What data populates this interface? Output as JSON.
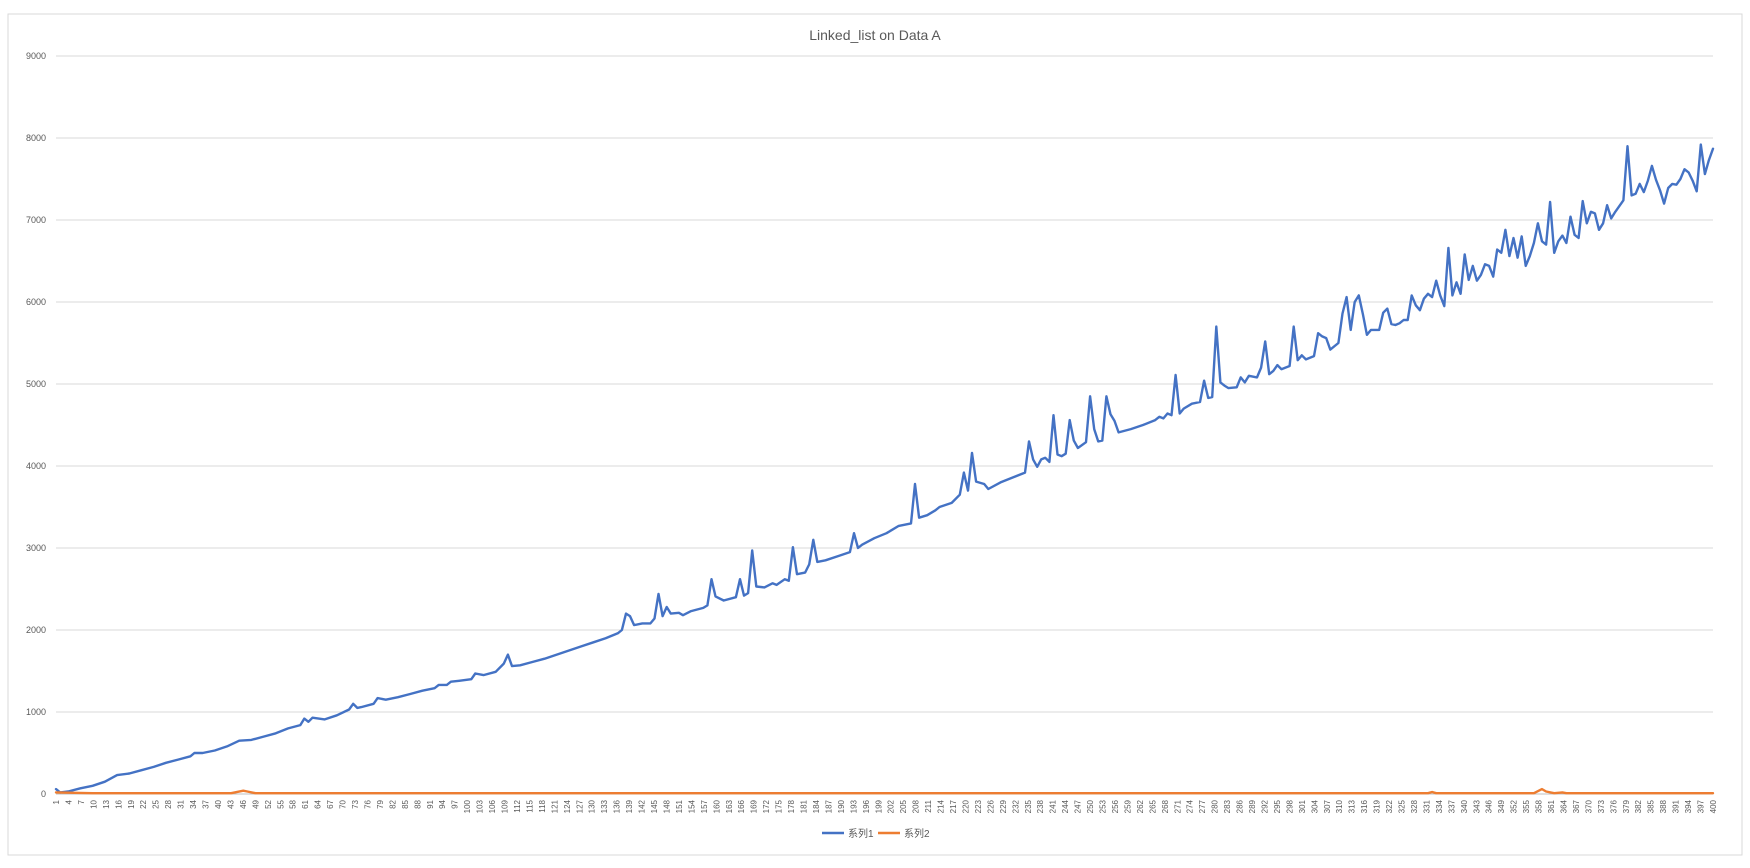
{
  "chart_data": {
    "type": "line",
    "title": "Linked_list on Data A",
    "xlabel": "",
    "ylabel": "",
    "ylim": [
      0,
      9000
    ],
    "yticks": [
      0,
      1000,
      2000,
      3000,
      4000,
      5000,
      6000,
      7000,
      8000,
      9000
    ],
    "xrange": [
      1,
      400
    ],
    "x_tick_step": 3,
    "grid": "horizontal",
    "legend_position": "bottom",
    "colors": {
      "series1": "#4472c4",
      "series2": "#ed7d31",
      "grid": "#d9d9d9",
      "axis": "#bfbfbf",
      "text": "#595959"
    },
    "series": [
      {
        "name": "系列1",
        "points": [
          [
            1,
            60
          ],
          [
            2,
            20
          ],
          [
            4,
            30
          ],
          [
            7,
            70
          ],
          [
            10,
            100
          ],
          [
            13,
            150
          ],
          [
            16,
            230
          ],
          [
            19,
            250
          ],
          [
            22,
            290
          ],
          [
            25,
            330
          ],
          [
            28,
            380
          ],
          [
            31,
            420
          ],
          [
            34,
            460
          ],
          [
            35,
            500
          ],
          [
            37,
            500
          ],
          [
            40,
            530
          ],
          [
            43,
            580
          ],
          [
            46,
            650
          ],
          [
            49,
            660
          ],
          [
            52,
            700
          ],
          [
            55,
            740
          ],
          [
            58,
            800
          ],
          [
            61,
            840
          ],
          [
            62,
            920
          ],
          [
            63,
            880
          ],
          [
            64,
            930
          ],
          [
            67,
            910
          ],
          [
            70,
            960
          ],
          [
            73,
            1030
          ],
          [
            74,
            1100
          ],
          [
            75,
            1050
          ],
          [
            76,
            1060
          ],
          [
            79,
            1100
          ],
          [
            80,
            1170
          ],
          [
            82,
            1150
          ],
          [
            85,
            1180
          ],
          [
            88,
            1220
          ],
          [
            91,
            1260
          ],
          [
            94,
            1290
          ],
          [
            95,
            1330
          ],
          [
            97,
            1330
          ],
          [
            98,
            1370
          ],
          [
            100,
            1380
          ],
          [
            103,
            1400
          ],
          [
            104,
            1470
          ],
          [
            106,
            1450
          ],
          [
            109,
            1490
          ],
          [
            111,
            1590
          ],
          [
            112,
            1700
          ],
          [
            113,
            1560
          ],
          [
            115,
            1570
          ],
          [
            118,
            1610
          ],
          [
            121,
            1650
          ],
          [
            124,
            1700
          ],
          [
            127,
            1750
          ],
          [
            130,
            1800
          ],
          [
            133,
            1850
          ],
          [
            136,
            1900
          ],
          [
            139,
            1960
          ],
          [
            140,
            2000
          ],
          [
            141,
            2200
          ],
          [
            142,
            2170
          ],
          [
            143,
            2060
          ],
          [
            145,
            2080
          ],
          [
            147,
            2080
          ],
          [
            148,
            2140
          ],
          [
            149,
            2440
          ],
          [
            150,
            2170
          ],
          [
            151,
            2280
          ],
          [
            152,
            2200
          ],
          [
            154,
            2210
          ],
          [
            155,
            2180
          ],
          [
            157,
            2230
          ],
          [
            160,
            2270
          ],
          [
            161,
            2300
          ],
          [
            162,
            2620
          ],
          [
            163,
            2410
          ],
          [
            165,
            2360
          ],
          [
            168,
            2400
          ],
          [
            169,
            2620
          ],
          [
            170,
            2420
          ],
          [
            171,
            2450
          ],
          [
            172,
            2970
          ],
          [
            173,
            2530
          ],
          [
            175,
            2520
          ],
          [
            177,
            2570
          ],
          [
            178,
            2550
          ],
          [
            180,
            2620
          ],
          [
            181,
            2600
          ],
          [
            182,
            3010
          ],
          [
            183,
            2680
          ],
          [
            185,
            2700
          ],
          [
            186,
            2800
          ],
          [
            187,
            3100
          ],
          [
            188,
            2830
          ],
          [
            190,
            2850
          ],
          [
            193,
            2900
          ],
          [
            196,
            2950
          ],
          [
            197,
            3180
          ],
          [
            198,
            3000
          ],
          [
            199,
            3040
          ],
          [
            202,
            3120
          ],
          [
            205,
            3180
          ],
          [
            208,
            3270
          ],
          [
            211,
            3300
          ],
          [
            212,
            3780
          ],
          [
            213,
            3370
          ],
          [
            215,
            3400
          ],
          [
            217,
            3460
          ],
          [
            218,
            3500
          ],
          [
            221,
            3550
          ],
          [
            223,
            3650
          ],
          [
            224,
            3920
          ],
          [
            225,
            3700
          ],
          [
            226,
            4160
          ],
          [
            227,
            3810
          ],
          [
            229,
            3780
          ],
          [
            230,
            3720
          ],
          [
            233,
            3800
          ],
          [
            236,
            3860
          ],
          [
            239,
            3920
          ],
          [
            240,
            4300
          ],
          [
            241,
            4080
          ],
          [
            242,
            3990
          ],
          [
            243,
            4080
          ],
          [
            244,
            4100
          ],
          [
            245,
            4050
          ],
          [
            246,
            4620
          ],
          [
            247,
            4140
          ],
          [
            248,
            4120
          ],
          [
            249,
            4150
          ],
          [
            250,
            4560
          ],
          [
            251,
            4310
          ],
          [
            252,
            4220
          ],
          [
            254,
            4290
          ],
          [
            255,
            4850
          ],
          [
            256,
            4450
          ],
          [
            257,
            4300
          ],
          [
            258,
            4310
          ],
          [
            259,
            4850
          ],
          [
            260,
            4630
          ],
          [
            261,
            4550
          ],
          [
            262,
            4410
          ],
          [
            265,
            4450
          ],
          [
            268,
            4500
          ],
          [
            271,
            4560
          ],
          [
            272,
            4600
          ],
          [
            273,
            4580
          ],
          [
            274,
            4640
          ],
          [
            275,
            4620
          ],
          [
            276,
            5110
          ],
          [
            277,
            4640
          ],
          [
            278,
            4700
          ],
          [
            280,
            4760
          ],
          [
            282,
            4780
          ],
          [
            283,
            5040
          ],
          [
            284,
            4830
          ],
          [
            285,
            4840
          ],
          [
            286,
            5700
          ],
          [
            287,
            5020
          ],
          [
            288,
            4980
          ],
          [
            289,
            4950
          ],
          [
            291,
            4960
          ],
          [
            292,
            5080
          ],
          [
            293,
            5020
          ],
          [
            294,
            5100
          ],
          [
            296,
            5080
          ],
          [
            297,
            5200
          ],
          [
            298,
            5520
          ],
          [
            299,
            5120
          ],
          [
            300,
            5160
          ],
          [
            301,
            5230
          ],
          [
            302,
            5180
          ],
          [
            304,
            5220
          ],
          [
            305,
            5700
          ],
          [
            306,
            5290
          ],
          [
            307,
            5350
          ],
          [
            308,
            5300
          ],
          [
            310,
            5340
          ],
          [
            311,
            5620
          ],
          [
            312,
            5580
          ],
          [
            313,
            5560
          ],
          [
            314,
            5420
          ],
          [
            316,
            5500
          ],
          [
            317,
            5860
          ],
          [
            318,
            6060
          ],
          [
            319,
            5660
          ],
          [
            320,
            6000
          ],
          [
            321,
            6080
          ],
          [
            322,
            5850
          ],
          [
            323,
            5600
          ],
          [
            324,
            5660
          ],
          [
            326,
            5660
          ],
          [
            327,
            5870
          ],
          [
            328,
            5920
          ],
          [
            329,
            5730
          ],
          [
            330,
            5720
          ],
          [
            331,
            5740
          ],
          [
            332,
            5780
          ],
          [
            333,
            5780
          ],
          [
            334,
            6080
          ],
          [
            335,
            5960
          ],
          [
            336,
            5900
          ],
          [
            337,
            6040
          ],
          [
            338,
            6100
          ],
          [
            339,
            6060
          ],
          [
            340,
            6260
          ],
          [
            341,
            6080
          ],
          [
            342,
            5950
          ],
          [
            343,
            6660
          ],
          [
            344,
            6080
          ],
          [
            345,
            6240
          ],
          [
            346,
            6100
          ],
          [
            347,
            6580
          ],
          [
            348,
            6270
          ],
          [
            349,
            6440
          ],
          [
            350,
            6260
          ],
          [
            351,
            6330
          ],
          [
            352,
            6460
          ],
          [
            353,
            6440
          ],
          [
            354,
            6310
          ],
          [
            355,
            6640
          ],
          [
            356,
            6600
          ],
          [
            357,
            6880
          ],
          [
            358,
            6560
          ],
          [
            359,
            6780
          ],
          [
            360,
            6540
          ],
          [
            361,
            6800
          ],
          [
            362,
            6440
          ],
          [
            363,
            6560
          ],
          [
            364,
            6720
          ],
          [
            365,
            6960
          ],
          [
            366,
            6740
          ],
          [
            367,
            6700
          ],
          [
            368,
            7220
          ],
          [
            369,
            6600
          ],
          [
            370,
            6740
          ],
          [
            371,
            6810
          ],
          [
            372,
            6720
          ],
          [
            373,
            7040
          ],
          [
            374,
            6820
          ],
          [
            375,
            6780
          ],
          [
            376,
            7230
          ],
          [
            377,
            6960
          ],
          [
            378,
            7100
          ],
          [
            379,
            7080
          ],
          [
            380,
            6880
          ],
          [
            381,
            6960
          ],
          [
            382,
            7180
          ],
          [
            383,
            7020
          ],
          [
            384,
            7100
          ],
          [
            386,
            7240
          ],
          [
            387,
            7900
          ],
          [
            388,
            7300
          ],
          [
            389,
            7320
          ],
          [
            390,
            7440
          ],
          [
            391,
            7340
          ],
          [
            392,
            7480
          ],
          [
            393,
            7660
          ],
          [
            394,
            7490
          ],
          [
            395,
            7360
          ],
          [
            396,
            7200
          ],
          [
            397,
            7390
          ],
          [
            398,
            7440
          ],
          [
            399,
            7430
          ],
          [
            400,
            7500
          ],
          [
            401,
            7620
          ],
          [
            402,
            7580
          ],
          [
            403,
            7480
          ],
          [
            404,
            7350
          ],
          [
            405,
            7920
          ],
          [
            406,
            7560
          ],
          [
            407,
            7730
          ],
          [
            408,
            7870
          ]
        ]
      },
      {
        "name": "系列2",
        "points": [
          [
            1,
            20
          ],
          [
            10,
            10
          ],
          [
            44,
            10
          ],
          [
            47,
            40
          ],
          [
            48,
            30
          ],
          [
            50,
            10
          ],
          [
            100,
            10
          ],
          [
            200,
            10
          ],
          [
            300,
            10
          ],
          [
            338,
            10
          ],
          [
            339,
            25
          ],
          [
            340,
            10
          ],
          [
            364,
            10
          ],
          [
            366,
            60
          ],
          [
            367,
            30
          ],
          [
            369,
            10
          ],
          [
            371,
            20
          ],
          [
            372,
            10
          ],
          [
            400,
            10
          ],
          [
            408,
            10
          ]
        ]
      }
    ]
  }
}
